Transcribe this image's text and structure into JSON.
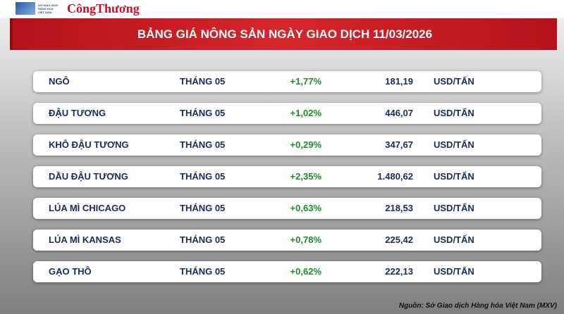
{
  "header": {
    "logo_lines": [
      "SỞ GIAO DỊCH",
      "HÀNG HÓA",
      "VIỆT NAM"
    ],
    "brand": "CôngThương",
    "title": "BẢNG GIÁ NÔNG SẢN NGÀY GIAO DỊCH 11/03/2026"
  },
  "table": {
    "rows": [
      [
        "NGÔ",
        "THÁNG 05",
        "+1,77%",
        "181,19",
        "USD/TẤN"
      ],
      [
        "ĐẬU TƯƠNG",
        "THÁNG 05",
        "+1,02%",
        "446,07",
        "USD/TẤN"
      ],
      [
        "KHÔ ĐẬU TƯƠNG",
        "THÁNG 05",
        "+0,29%",
        "347,67",
        "USD/TẤN"
      ],
      [
        "DẦU ĐẬU TƯƠNG",
        "THÁNG 05",
        "+2,35%",
        "1.480,62",
        "USD/TẤN"
      ],
      [
        "LÚA MÌ CHICAGO",
        "THÁNG 05",
        "+0,63%",
        "218,53",
        "USD/TẤN"
      ],
      [
        "LÚA MÌ KANSAS",
        "THÁNG 05",
        "+0,78%",
        "225,42",
        "USD/TẤN"
      ],
      [
        "GẠO THÔ",
        "THÁNG 05",
        "+0,62%",
        "222,13",
        "USD/TẤN"
      ]
    ]
  },
  "footer": {
    "source": "Nguồn: Sở Giao dịch Hàng hóa Việt Nam (MXV)"
  }
}
